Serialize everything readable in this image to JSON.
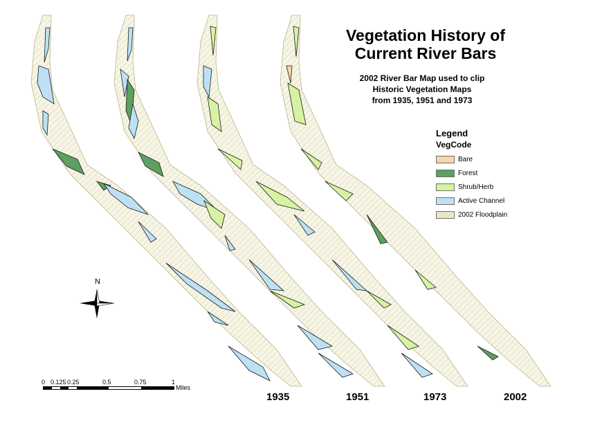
{
  "title": {
    "line1": "Vegetation History of",
    "line2": "Current River Bars"
  },
  "subtitle": {
    "line1": "2002 River Bar Map used to clip",
    "line2": "Historic Vegetation Maps",
    "line3": "from 1935, 1951 and 1973"
  },
  "legend": {
    "title": "Legend",
    "subtitle": "VegCode",
    "items": [
      {
        "label": "Bare",
        "color": "#f6d7a7"
      },
      {
        "label": "Forest",
        "color": "#5da060"
      },
      {
        "label": "Shrub/Herb",
        "color": "#d7f2a3"
      },
      {
        "label": "Active Channel",
        "color": "#bde1f4"
      },
      {
        "label": "2002 Floodplain",
        "color": "#f1eecf"
      }
    ]
  },
  "north_arrow": {
    "label": "N",
    "icon": "north-arrow-icon"
  },
  "scale_bar": {
    "ticks": [
      "0",
      "0.125",
      "0.25",
      "0.5",
      "0.75",
      "1"
    ],
    "unit": "Miles"
  },
  "years": [
    "1935",
    "1951",
    "1973",
    "2002"
  ],
  "map_colors": {
    "floodplain_fill": "#f7f5e6",
    "floodplain_hatch": "#d9d4b0",
    "outline": "#1a1a1a"
  }
}
